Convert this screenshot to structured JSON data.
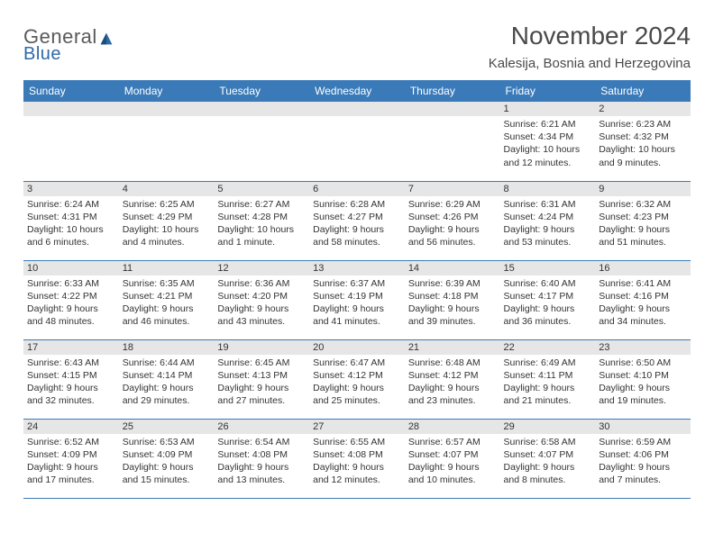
{
  "logo": {
    "line1": "General",
    "line2": "Blue"
  },
  "title": "November 2024",
  "location": "Kalesija, Bosnia and Herzegovina",
  "colors": {
    "header_bg": "#3a7ab8",
    "header_text": "#ffffff",
    "band_bg": "#e6e6e6",
    "border": "#3a7ab8",
    "body_text": "#333333",
    "logo_gray": "#5a5a5a",
    "logo_blue": "#2d6aa8",
    "page_bg": "#ffffff"
  },
  "typography": {
    "title_fontsize": 28,
    "location_fontsize": 15,
    "dow_fontsize": 12,
    "daynum_fontsize": 11,
    "cell_fontsize": 10.5
  },
  "days_of_week": [
    "Sunday",
    "Monday",
    "Tuesday",
    "Wednesday",
    "Thursday",
    "Friday",
    "Saturday"
  ],
  "weeks": [
    [
      null,
      null,
      null,
      null,
      null,
      {
        "n": "1",
        "sr": "Sunrise: 6:21 AM",
        "ss": "Sunset: 4:34 PM",
        "dl": "Daylight: 10 hours and 12 minutes."
      },
      {
        "n": "2",
        "sr": "Sunrise: 6:23 AM",
        "ss": "Sunset: 4:32 PM",
        "dl": "Daylight: 10 hours and 9 minutes."
      }
    ],
    [
      {
        "n": "3",
        "sr": "Sunrise: 6:24 AM",
        "ss": "Sunset: 4:31 PM",
        "dl": "Daylight: 10 hours and 6 minutes."
      },
      {
        "n": "4",
        "sr": "Sunrise: 6:25 AM",
        "ss": "Sunset: 4:29 PM",
        "dl": "Daylight: 10 hours and 4 minutes."
      },
      {
        "n": "5",
        "sr": "Sunrise: 6:27 AM",
        "ss": "Sunset: 4:28 PM",
        "dl": "Daylight: 10 hours and 1 minute."
      },
      {
        "n": "6",
        "sr": "Sunrise: 6:28 AM",
        "ss": "Sunset: 4:27 PM",
        "dl": "Daylight: 9 hours and 58 minutes."
      },
      {
        "n": "7",
        "sr": "Sunrise: 6:29 AM",
        "ss": "Sunset: 4:26 PM",
        "dl": "Daylight: 9 hours and 56 minutes."
      },
      {
        "n": "8",
        "sr": "Sunrise: 6:31 AM",
        "ss": "Sunset: 4:24 PM",
        "dl": "Daylight: 9 hours and 53 minutes."
      },
      {
        "n": "9",
        "sr": "Sunrise: 6:32 AM",
        "ss": "Sunset: 4:23 PM",
        "dl": "Daylight: 9 hours and 51 minutes."
      }
    ],
    [
      {
        "n": "10",
        "sr": "Sunrise: 6:33 AM",
        "ss": "Sunset: 4:22 PM",
        "dl": "Daylight: 9 hours and 48 minutes."
      },
      {
        "n": "11",
        "sr": "Sunrise: 6:35 AM",
        "ss": "Sunset: 4:21 PM",
        "dl": "Daylight: 9 hours and 46 minutes."
      },
      {
        "n": "12",
        "sr": "Sunrise: 6:36 AM",
        "ss": "Sunset: 4:20 PM",
        "dl": "Daylight: 9 hours and 43 minutes."
      },
      {
        "n": "13",
        "sr": "Sunrise: 6:37 AM",
        "ss": "Sunset: 4:19 PM",
        "dl": "Daylight: 9 hours and 41 minutes."
      },
      {
        "n": "14",
        "sr": "Sunrise: 6:39 AM",
        "ss": "Sunset: 4:18 PM",
        "dl": "Daylight: 9 hours and 39 minutes."
      },
      {
        "n": "15",
        "sr": "Sunrise: 6:40 AM",
        "ss": "Sunset: 4:17 PM",
        "dl": "Daylight: 9 hours and 36 minutes."
      },
      {
        "n": "16",
        "sr": "Sunrise: 6:41 AM",
        "ss": "Sunset: 4:16 PM",
        "dl": "Daylight: 9 hours and 34 minutes."
      }
    ],
    [
      {
        "n": "17",
        "sr": "Sunrise: 6:43 AM",
        "ss": "Sunset: 4:15 PM",
        "dl": "Daylight: 9 hours and 32 minutes."
      },
      {
        "n": "18",
        "sr": "Sunrise: 6:44 AM",
        "ss": "Sunset: 4:14 PM",
        "dl": "Daylight: 9 hours and 29 minutes."
      },
      {
        "n": "19",
        "sr": "Sunrise: 6:45 AM",
        "ss": "Sunset: 4:13 PM",
        "dl": "Daylight: 9 hours and 27 minutes."
      },
      {
        "n": "20",
        "sr": "Sunrise: 6:47 AM",
        "ss": "Sunset: 4:12 PM",
        "dl": "Daylight: 9 hours and 25 minutes."
      },
      {
        "n": "21",
        "sr": "Sunrise: 6:48 AM",
        "ss": "Sunset: 4:12 PM",
        "dl": "Daylight: 9 hours and 23 minutes."
      },
      {
        "n": "22",
        "sr": "Sunrise: 6:49 AM",
        "ss": "Sunset: 4:11 PM",
        "dl": "Daylight: 9 hours and 21 minutes."
      },
      {
        "n": "23",
        "sr": "Sunrise: 6:50 AM",
        "ss": "Sunset: 4:10 PM",
        "dl": "Daylight: 9 hours and 19 minutes."
      }
    ],
    [
      {
        "n": "24",
        "sr": "Sunrise: 6:52 AM",
        "ss": "Sunset: 4:09 PM",
        "dl": "Daylight: 9 hours and 17 minutes."
      },
      {
        "n": "25",
        "sr": "Sunrise: 6:53 AM",
        "ss": "Sunset: 4:09 PM",
        "dl": "Daylight: 9 hours and 15 minutes."
      },
      {
        "n": "26",
        "sr": "Sunrise: 6:54 AM",
        "ss": "Sunset: 4:08 PM",
        "dl": "Daylight: 9 hours and 13 minutes."
      },
      {
        "n": "27",
        "sr": "Sunrise: 6:55 AM",
        "ss": "Sunset: 4:08 PM",
        "dl": "Daylight: 9 hours and 12 minutes."
      },
      {
        "n": "28",
        "sr": "Sunrise: 6:57 AM",
        "ss": "Sunset: 4:07 PM",
        "dl": "Daylight: 9 hours and 10 minutes."
      },
      {
        "n": "29",
        "sr": "Sunrise: 6:58 AM",
        "ss": "Sunset: 4:07 PM",
        "dl": "Daylight: 9 hours and 8 minutes."
      },
      {
        "n": "30",
        "sr": "Sunrise: 6:59 AM",
        "ss": "Sunset: 4:06 PM",
        "dl": "Daylight: 9 hours and 7 minutes."
      }
    ]
  ]
}
